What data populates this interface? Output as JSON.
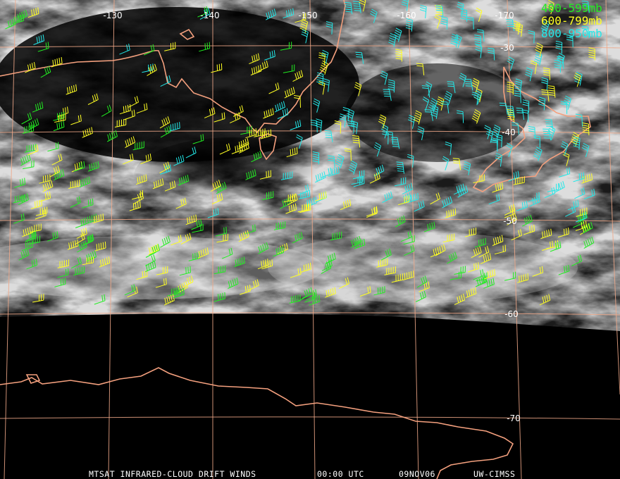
{
  "map": {
    "longitude_labels": [
      -130,
      -140,
      -150,
      -160,
      -170
    ],
    "latitude_labels": [
      -30,
      -40,
      -50,
      -60,
      -70
    ],
    "legend": [
      {
        "label": "400-599mb",
        "color": "#22ee22"
      },
      {
        "label": "600-799mb",
        "color": "#ffff22"
      },
      {
        "label": "800-950mb",
        "color": "#22e8e8"
      }
    ],
    "footer": {
      "product": "MTSAT INFRARED-CLOUD DRIFT WINDS",
      "time": "00:00 UTC",
      "date": "09NOV06",
      "source": "UW-CIMSS"
    }
  }
}
